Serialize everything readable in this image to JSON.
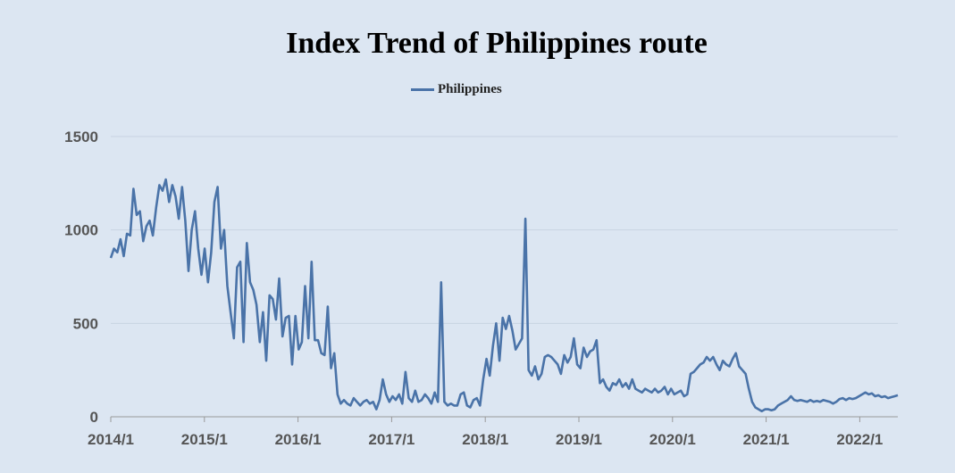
{
  "chart_data": {
    "type": "line",
    "title": "Index Trend of Philippines route",
    "ylim": [
      0,
      1500
    ],
    "yticks": [
      "0",
      "500",
      "1000",
      "1500"
    ],
    "xticks": [
      "2014/1",
      "2015/1",
      "2016/1",
      "2017/1",
      "2018/1",
      "2019/1",
      "2020/1",
      "2021/1",
      "2022/1"
    ],
    "legend": "top-center",
    "grid": true,
    "series": [
      {
        "name": "Philippines",
        "color": "#4a73a8",
        "x_start": "2014/1",
        "x_end": "2022/5",
        "values": [
          850,
          900,
          880,
          950,
          860,
          980,
          970,
          1220,
          1080,
          1100,
          940,
          1020,
          1050,
          970,
          1120,
          1240,
          1210,
          1270,
          1150,
          1240,
          1180,
          1060,
          1230,
          1050,
          780,
          1000,
          1100,
          900,
          760,
          900,
          720,
          880,
          1150,
          1230,
          900,
          1000,
          700,
          560,
          420,
          800,
          830,
          400,
          930,
          720,
          680,
          600,
          400,
          560,
          300,
          650,
          630,
          520,
          740,
          430,
          530,
          540,
          280,
          540,
          360,
          400,
          700,
          420,
          830,
          410,
          410,
          340,
          330,
          590,
          260,
          340,
          120,
          70,
          90,
          70,
          60,
          100,
          80,
          60,
          80,
          90,
          70,
          80,
          40,
          90,
          200,
          120,
          80,
          110,
          90,
          120,
          70,
          240,
          100,
          80,
          140,
          80,
          90,
          120,
          100,
          70,
          130,
          80,
          720,
          80,
          60,
          70,
          60,
          60,
          120,
          130,
          60,
          50,
          90,
          100,
          60,
          200,
          310,
          220,
          380,
          500,
          300,
          530,
          470,
          540,
          460,
          360,
          390,
          420,
          1060,
          250,
          220,
          270,
          200,
          230,
          320,
          330,
          320,
          300,
          280,
          230,
          330,
          290,
          320,
          420,
          280,
          260,
          370,
          320,
          350,
          360,
          410,
          180,
          200,
          160,
          140,
          180,
          170,
          200,
          160,
          180,
          150,
          200,
          150,
          140,
          130,
          150,
          140,
          130,
          150,
          130,
          140,
          160,
          120,
          150,
          120,
          130,
          140,
          110,
          120,
          230,
          240,
          260,
          280,
          290,
          320,
          300,
          320,
          280,
          250,
          300,
          280,
          270,
          310,
          340,
          270,
          250,
          230,
          150,
          80,
          50,
          40,
          30,
          40,
          40,
          35,
          40,
          60,
          70,
          80,
          90,
          110,
          90,
          85,
          90,
          85,
          80,
          90,
          80,
          85,
          80,
          90,
          85,
          80,
          70,
          80,
          95,
          100,
          90,
          100,
          95,
          100,
          110,
          120,
          130,
          120,
          125,
          110,
          115,
          105,
          110,
          100,
          105,
          110,
          115
        ]
      }
    ]
  }
}
